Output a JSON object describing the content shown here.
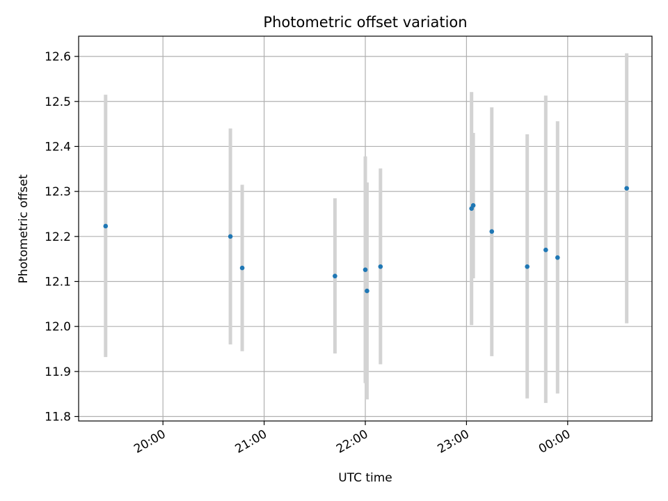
{
  "chart_data": {
    "type": "scatter",
    "title": "Photometric offset variation",
    "xlabel": "UTC time",
    "ylabel": "Photometric offset",
    "xlim": [
      "19:10",
      "00:50"
    ],
    "ylim": [
      11.79,
      12.645
    ],
    "grid": true,
    "x_ticks": [
      {
        "time": "20:00",
        "label": "20:00"
      },
      {
        "time": "21:00",
        "label": "21:00"
      },
      {
        "time": "22:00",
        "label": "22:00"
      },
      {
        "time": "23:00",
        "label": "23:00"
      },
      {
        "time": "00:00",
        "label": "00:00"
      }
    ],
    "y_ticks": [
      11.8,
      11.9,
      12.0,
      12.1,
      12.2,
      12.3,
      12.4,
      12.5,
      12.6
    ],
    "points": [
      {
        "time": "19:26",
        "y": 12.223,
        "err_low": 11.932,
        "err_high": 12.515
      },
      {
        "time": "20:40",
        "y": 12.2,
        "err_low": 11.96,
        "err_high": 12.44
      },
      {
        "time": "20:47",
        "y": 12.13,
        "err_low": 11.945,
        "err_high": 12.315
      },
      {
        "time": "21:42",
        "y": 12.112,
        "err_low": 11.94,
        "err_high": 12.285
      },
      {
        "time": "22:00",
        "y": 12.126,
        "err_low": 11.874,
        "err_high": 12.378
      },
      {
        "time": "22:01",
        "y": 12.079,
        "err_low": 11.838,
        "err_high": 12.32
      },
      {
        "time": "22:09",
        "y": 12.133,
        "err_low": 11.916,
        "err_high": 12.351
      },
      {
        "time": "23:03",
        "y": 12.262,
        "err_low": 12.003,
        "err_high": 12.521
      },
      {
        "time": "23:04",
        "y": 12.269,
        "err_low": 12.107,
        "err_high": 12.43
      },
      {
        "time": "23:15",
        "y": 12.211,
        "err_low": 11.934,
        "err_high": 12.487
      },
      {
        "time": "23:36",
        "y": 12.133,
        "err_low": 11.84,
        "err_high": 12.427
      },
      {
        "time": "23:47",
        "y": 12.17,
        "err_low": 11.83,
        "err_high": 12.513
      },
      {
        "time": "23:54",
        "y": 12.153,
        "err_low": 11.851,
        "err_high": 12.456
      },
      {
        "time": "00:35",
        "y": 12.307,
        "err_low": 12.007,
        "err_high": 12.607
      }
    ],
    "colors": {
      "marker": "#1f77b4",
      "errorbar": "#d3d3d3",
      "grid": "#b0b0b0"
    }
  }
}
